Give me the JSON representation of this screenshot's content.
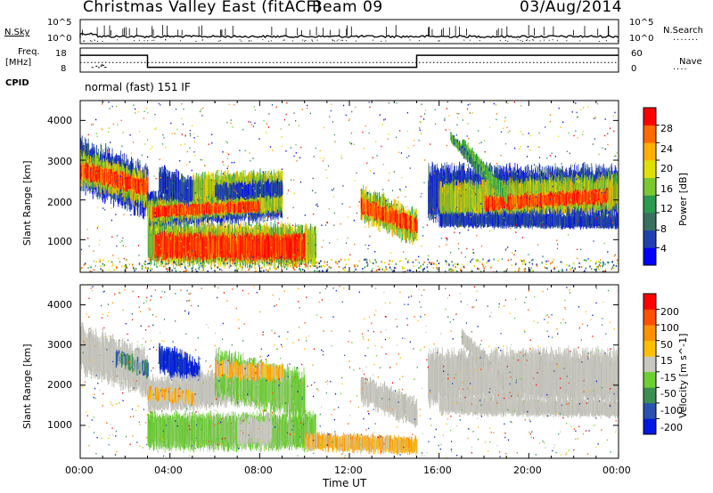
{
  "header": {
    "site": "Christmas Valley East (fitACF)",
    "beam": "Beam 09",
    "date": "03/Aug/2014"
  },
  "strips": {
    "nsky_label": "N.Sky",
    "nsearch_label": "N.Search",
    "nsky_ticks": [
      "10^5",
      "10^0"
    ],
    "nsky_right_ticks": [
      "10^5",
      "10^0"
    ],
    "freq_label": [
      "Freq.",
      "[MHz]"
    ],
    "freq_ticks": [
      "18",
      "8"
    ],
    "nave_label": "Nave",
    "nave_ticks": [
      "60",
      "0"
    ],
    "cpid_label": "CPID",
    "cpid_value": "normal (fast) 151 IF",
    "freq_steps": [
      {
        "from": 0,
        "to": 3,
        "mhz": 15
      },
      {
        "from": 3,
        "to": 15,
        "mhz": 10
      },
      {
        "from": 15,
        "to": 24,
        "mhz": 15
      }
    ]
  },
  "chart_data": [
    {
      "type": "heatmap",
      "name": "power",
      "ylabel": "Slant Range [km]",
      "xlabel": "",
      "yticks": [
        "4000",
        "3000",
        "2000",
        "1000"
      ],
      "ylim": [
        180,
        4500
      ],
      "xlim": [
        0,
        24
      ],
      "colorbar_label": "Power [dB]",
      "colorbar_ticks": [
        "28",
        "24",
        "20",
        "16",
        "12",
        "8",
        "4"
      ],
      "colorbar_colors": [
        "#0000ff",
        "#2140b0",
        "#3a7060",
        "#2a9a50",
        "#7ac830",
        "#e0e000",
        "#ffb000",
        "#ff6a00",
        "#ff0000"
      ]
    },
    {
      "type": "heatmap",
      "name": "velocity",
      "ylabel": "Slant Range [km]",
      "xlabel": "Time UT",
      "yticks": [
        "4000",
        "3000",
        "2000",
        "1000"
      ],
      "ylim": [
        180,
        4500
      ],
      "xlim": [
        0,
        24
      ],
      "xticks": [
        "00:00",
        "04:00",
        "08:00",
        "12:00",
        "16:00",
        "20:00",
        "00:00"
      ],
      "colorbar_label": "Velocity [m s^-1]",
      "colorbar_ticks": [
        "200",
        "100",
        "50",
        "15",
        "-15",
        "-50",
        "-100",
        "-200"
      ],
      "colorbar_colors": [
        "#0018e0",
        "#2a50b0",
        "#3a9050",
        "#6cd030",
        "#c8c8c0",
        "#ffc000",
        "#ff9000",
        "#ff5000",
        "#ff0000"
      ]
    }
  ]
}
